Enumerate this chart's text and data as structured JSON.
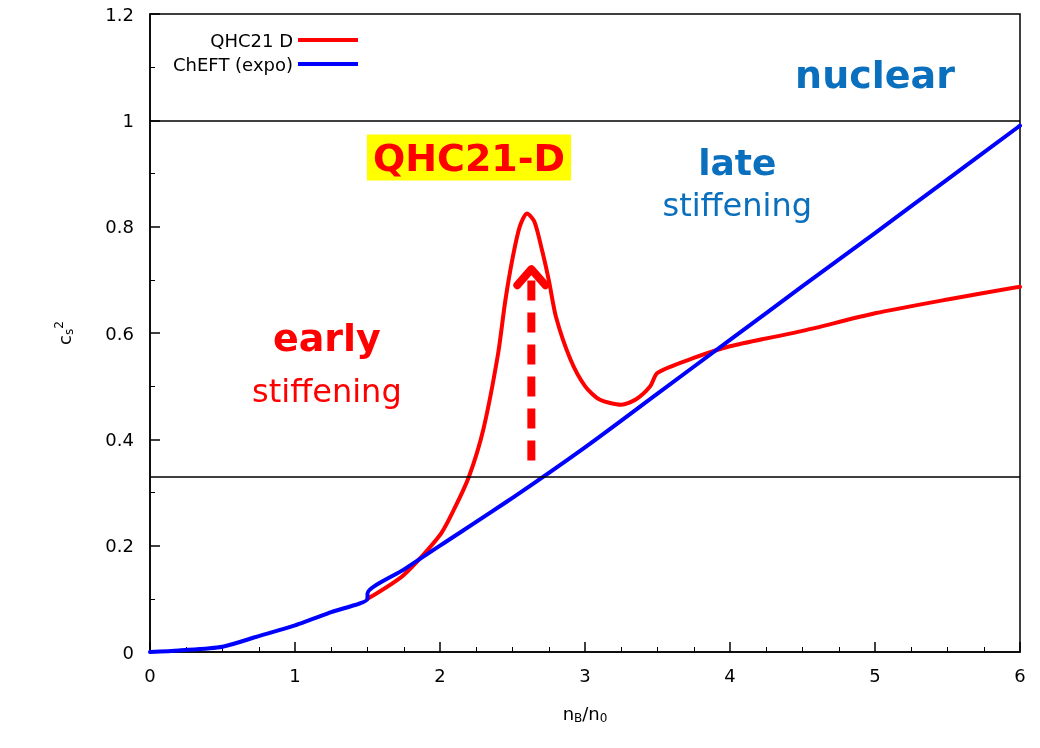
{
  "chart_data": {
    "type": "line",
    "xlabel": "n$_{B}$/n$_{0}$",
    "ylabel": "c$_{s}$$^{2}$",
    "xlim": [
      0,
      6
    ],
    "xticks": [
      0,
      1,
      2,
      3,
      4,
      5,
      6
    ],
    "ylim": [
      0,
      1.2
    ],
    "yticks": [
      0,
      0.2,
      0.4,
      0.6,
      0.8,
      1,
      1.2
    ],
    "grid": false,
    "legend": "top left",
    "line_style": "solid",
    "marker": "none",
    "series": [
      {
        "name": "QHC21 D",
        "color": "#ff0000",
        "x": [
          1.5,
          1.75,
          2.0,
          2.1,
          2.2,
          2.3,
          2.4,
          2.45,
          2.5,
          2.55,
          2.6,
          2.65,
          2.7,
          2.75,
          2.8,
          2.9,
          3.0,
          3.1,
          3.25,
          3.35,
          3.45,
          3.5,
          3.75,
          4,
          4.5,
          5,
          5.5,
          6
        ],
        "values": [
          0.1,
          0.145,
          0.22,
          0.27,
          0.33,
          0.42,
          0.56,
          0.66,
          0.74,
          0.8,
          0.825,
          0.81,
          0.76,
          0.7,
          0.63,
          0.55,
          0.5,
          0.475,
          0.465,
          0.475,
          0.5,
          0.525,
          0.553,
          0.575,
          0.604,
          0.637,
          0.663,
          0.687
        ]
      },
      {
        "name": "ChEFT (expo)",
        "color": "#0000ff",
        "x": [
          0,
          0.2,
          0.5,
          0.75,
          1,
          1.25,
          1.5,
          1.5,
          1.75,
          2,
          2.5,
          3,
          3.5,
          4,
          4.5,
          5,
          5.5,
          6
        ],
        "values": [
          0,
          0.003,
          0.01,
          0.03,
          0.05,
          0.075,
          0.1,
          0.11,
          0.155,
          0.2,
          0.29,
          0.385,
          0.486,
          0.587,
          0.688,
          0.788,
          0.889,
          0.99
        ]
      }
    ],
    "ref_lines": [
      {
        "axis": "y",
        "value": 1,
        "color": "#000000"
      },
      {
        "axis": "y",
        "value": 0.333,
        "color": "#000000"
      }
    ],
    "annotations": [
      "nuclear",
      "late",
      "stiffening",
      "QHC21-D",
      "early",
      "stiffening"
    ]
  }
}
